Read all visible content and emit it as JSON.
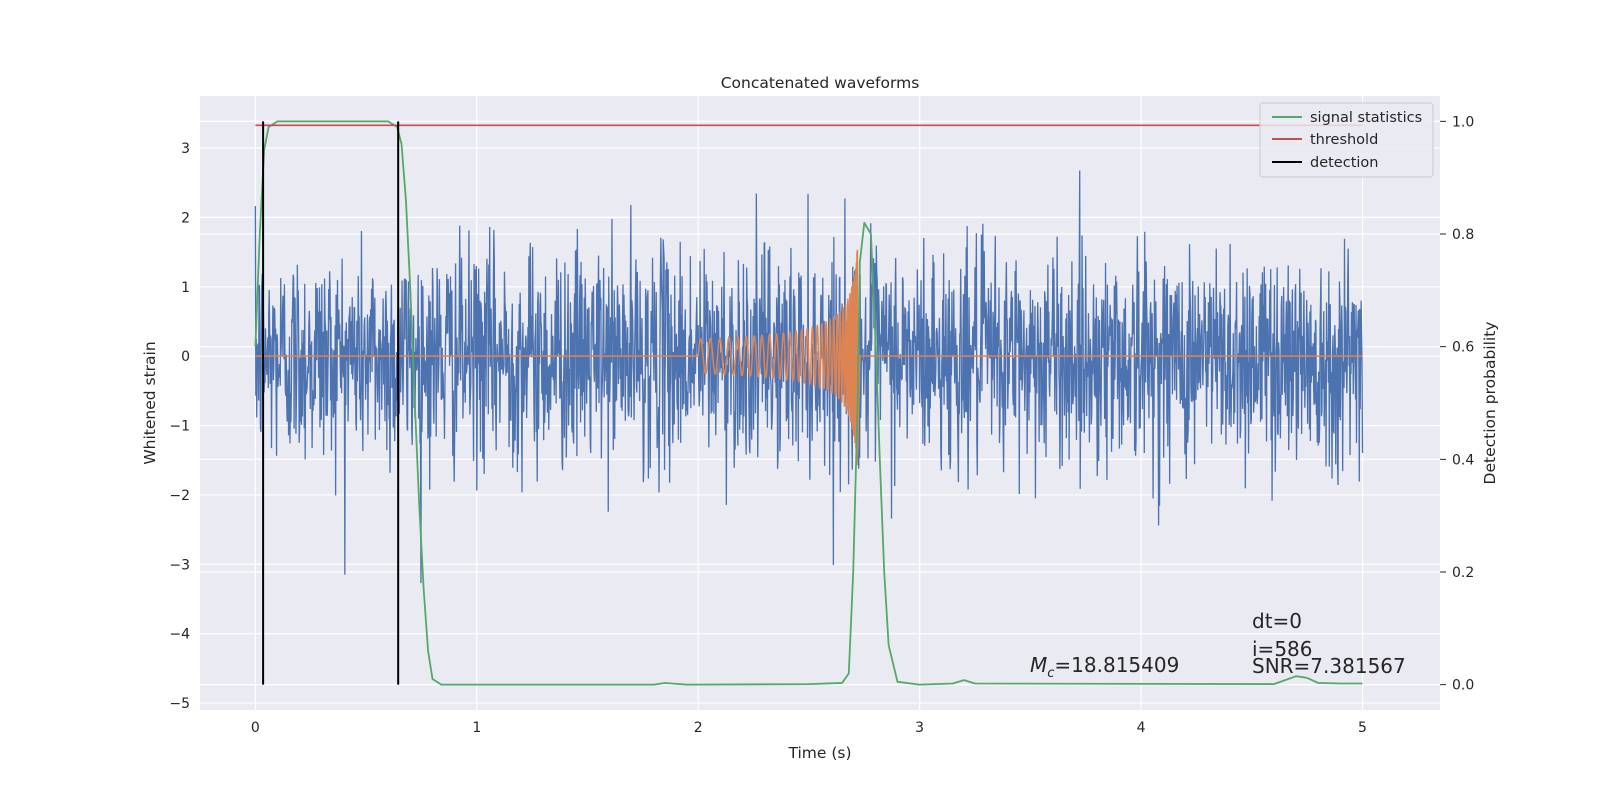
{
  "chart_data": {
    "type": "line",
    "title": "Concatenated waveforms",
    "xlabel": "Time (s)",
    "ylabel": "Whitened strain",
    "ylabel_right": "Detection probability",
    "xlim": [
      -0.25,
      5.35
    ],
    "ylim": [
      -5.1,
      3.75
    ],
    "ylim_right": [
      -0.045,
      1.045
    ],
    "x_ticks": [
      "0",
      "1",
      "2",
      "3",
      "4",
      "5"
    ],
    "y_ticks": [
      "3",
      "2",
      "1",
      "0",
      "−1",
      "−2",
      "−3",
      "−4",
      "−5"
    ],
    "y_ticks_right": [
      "1.0",
      "0.8",
      "0.6",
      "0.4",
      "0.2",
      "0.0"
    ],
    "grid": true,
    "legend_position": "top-right",
    "series": [
      {
        "name": "",
        "axis": "left",
        "kind": "noise",
        "x_range": [
          0,
          5
        ],
        "std": 0.78,
        "color": "#4c72b0"
      },
      {
        "name": "",
        "axis": "left",
        "kind": "chirp",
        "x_range": [
          2.0,
          2.72
        ],
        "peak_amplitude": 1.6,
        "color": "#dd8452"
      },
      {
        "name": "signal statistics",
        "axis": "right",
        "color": "#55a868",
        "points": [
          [
            0.0,
            0.6
          ],
          [
            0.02,
            0.8
          ],
          [
            0.04,
            0.95
          ],
          [
            0.06,
            0.99
          ],
          [
            0.1,
            1.0
          ],
          [
            0.6,
            1.0
          ],
          [
            0.64,
            0.99
          ],
          [
            0.66,
            0.96
          ],
          [
            0.68,
            0.86
          ],
          [
            0.7,
            0.7
          ],
          [
            0.72,
            0.5
          ],
          [
            0.74,
            0.32
          ],
          [
            0.76,
            0.17
          ],
          [
            0.78,
            0.06
          ],
          [
            0.8,
            0.01
          ],
          [
            0.84,
            0.0
          ],
          [
            1.8,
            0.0
          ],
          [
            1.85,
            0.003
          ],
          [
            1.95,
            0.0
          ],
          [
            2.5,
            0.001
          ],
          [
            2.65,
            0.003
          ],
          [
            2.68,
            0.02
          ],
          [
            2.7,
            0.2
          ],
          [
            2.72,
            0.5
          ],
          [
            2.73,
            0.75
          ],
          [
            2.75,
            0.82
          ],
          [
            2.78,
            0.8
          ],
          [
            2.8,
            0.62
          ],
          [
            2.82,
            0.4
          ],
          [
            2.84,
            0.2
          ],
          [
            2.86,
            0.07
          ],
          [
            2.9,
            0.005
          ],
          [
            3.0,
            0.0
          ],
          [
            3.15,
            0.002
          ],
          [
            3.2,
            0.008
          ],
          [
            3.25,
            0.002
          ],
          [
            4.6,
            0.001
          ],
          [
            4.7,
            0.015
          ],
          [
            4.75,
            0.012
          ],
          [
            4.8,
            0.003
          ],
          [
            4.9,
            0.002
          ],
          [
            5.0,
            0.002
          ]
        ]
      },
      {
        "name": "threshold",
        "axis": "right",
        "color": "#c44e52",
        "points": [
          [
            0.0,
            0.993
          ],
          [
            5.0,
            0.993
          ]
        ]
      },
      {
        "name": "detection",
        "axis": "right",
        "color": "#000000",
        "vlines_x": [
          0.035,
          0.645
        ],
        "ymin": 0.0,
        "ymax": 1.0
      }
    ],
    "annotations": {
      "mc_label": "=18.815409",
      "mc_symbol": "M",
      "mc_subscript": "c",
      "dt": "dt=0",
      "i": "i=586",
      "snr": "SNR=7.381567"
    }
  }
}
